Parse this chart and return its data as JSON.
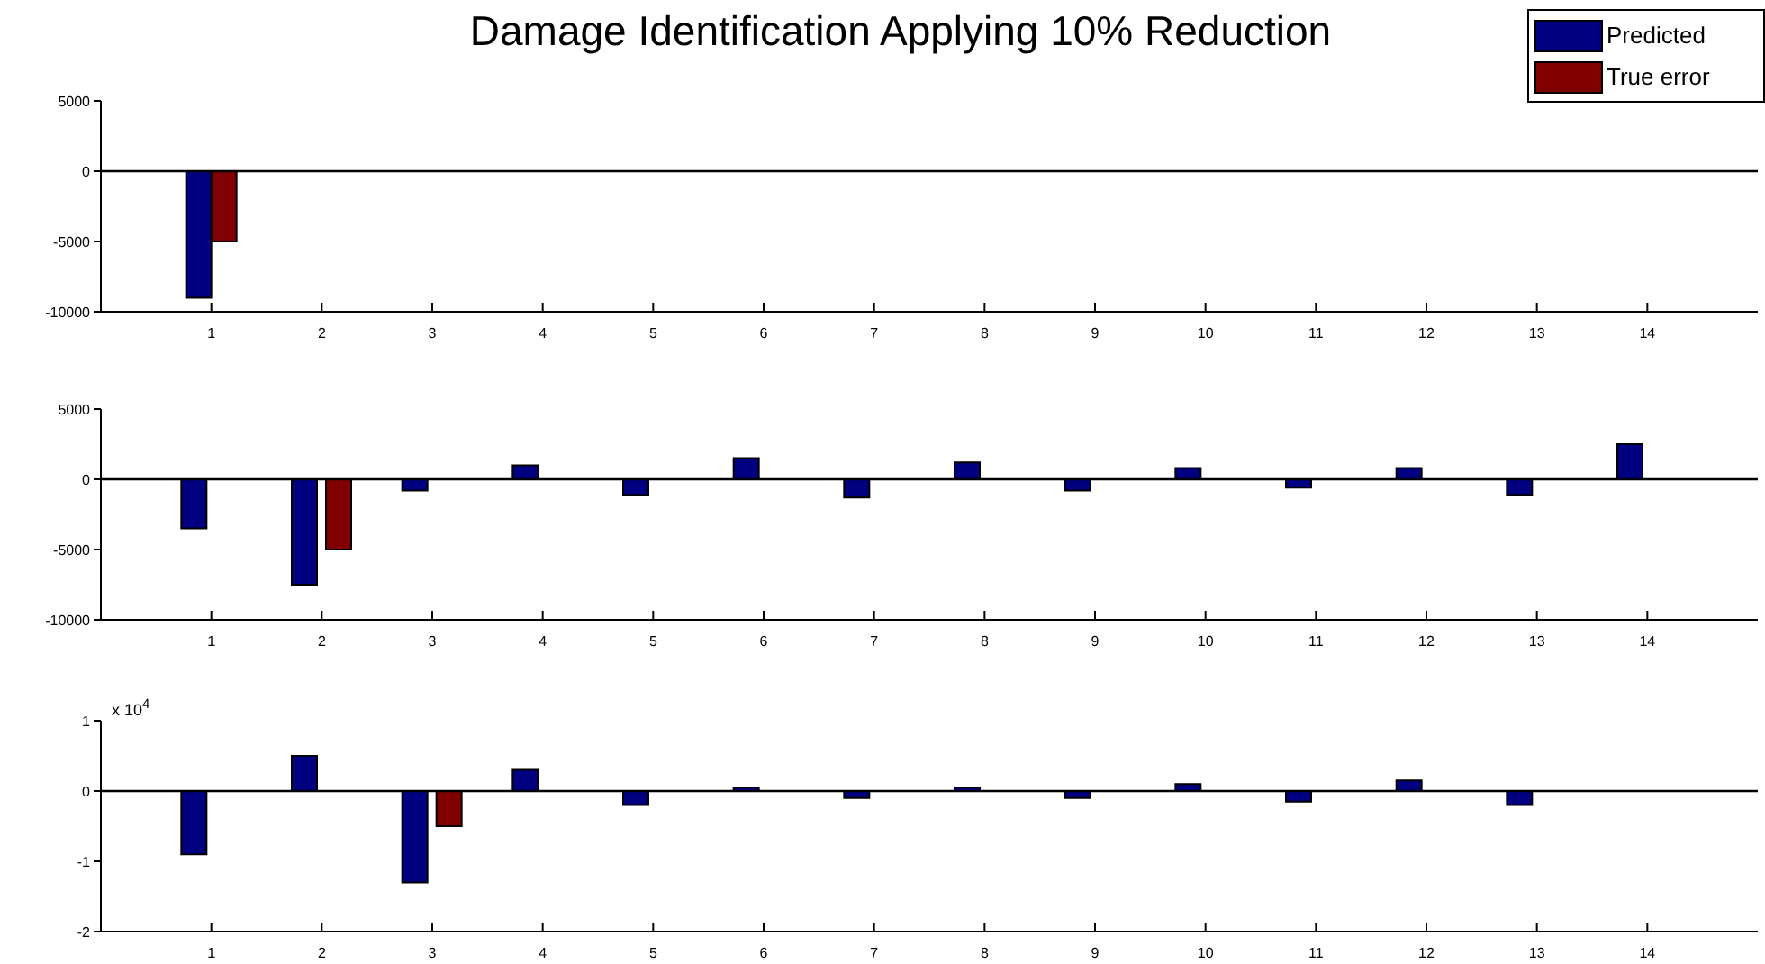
{
  "chart_data": [
    {
      "type": "bar",
      "title": "Damage Identification Applying 10% Reduction",
      "x": [
        1
      ],
      "xlim": [
        0,
        15
      ],
      "xticks": [
        1,
        2,
        3,
        4,
        5,
        6,
        7,
        8,
        9,
        10,
        11,
        12,
        13,
        14
      ],
      "ylim": [
        -10000,
        5000
      ],
      "yticks": [
        5000,
        0,
        -5000,
        -10000
      ],
      "legend": "top right",
      "ref_lines": [
        {
          "axis": "y",
          "value": 0
        }
      ],
      "series": [
        {
          "name": "Predicted",
          "color": "#000080",
          "values": [
            -9000
          ]
        },
        {
          "name": "True error",
          "color": "#800000",
          "values": [
            -5000
          ]
        }
      ]
    },
    {
      "type": "bar",
      "x": [
        1,
        2,
        3,
        4,
        5,
        6,
        7,
        8,
        9,
        10,
        11,
        12,
        13,
        14
      ],
      "xlim": [
        0,
        15
      ],
      "xticks": [
        1,
        2,
        3,
        4,
        5,
        6,
        7,
        8,
        9,
        10,
        11,
        12,
        13,
        14
      ],
      "ylim": [
        -10000,
        5000
      ],
      "yticks": [
        5000,
        0,
        -5000,
        -10000
      ],
      "ref_lines": [
        {
          "axis": "y",
          "value": 0
        }
      ],
      "series": [
        {
          "color": "#000080",
          "values": [
            -3500,
            -7500,
            -800,
            1000,
            -1100,
            1500,
            -1300,
            1200,
            -800,
            800,
            -600,
            800,
            -1100,
            2500
          ]
        },
        {
          "color": "#800000",
          "values": [
            null,
            -5000,
            null,
            null,
            null,
            null,
            null,
            null,
            null,
            null,
            null,
            null,
            null,
            null
          ]
        }
      ]
    },
    {
      "type": "bar",
      "x": [
        1,
        2,
        3,
        4,
        5,
        6,
        7,
        8,
        9,
        10,
        11,
        12,
        13
      ],
      "xlim": [
        0,
        15
      ],
      "xticks": [
        1,
        2,
        3,
        4,
        5,
        6,
        7,
        8,
        9,
        10,
        11,
        12,
        13,
        14
      ],
      "ylim": [
        -2,
        1
      ],
      "yticks": [
        1,
        0,
        -1,
        -2
      ],
      "annotations": [
        "x 10$^{4}$"
      ],
      "ref_lines": [
        {
          "axis": "y",
          "value": 0
        }
      ],
      "series": [
        {
          "color": "#000080",
          "values": [
            -0.9,
            0.5,
            -1.3,
            0.3,
            -0.2,
            0.05,
            -0.1,
            0.05,
            -0.1,
            0.1,
            -0.15,
            0.15,
            -0.2
          ]
        },
        {
          "color": "#800000",
          "values": [
            null,
            null,
            -0.5,
            null,
            null,
            null,
            null,
            null,
            null,
            null,
            null,
            null,
            null
          ]
        }
      ]
    }
  ]
}
